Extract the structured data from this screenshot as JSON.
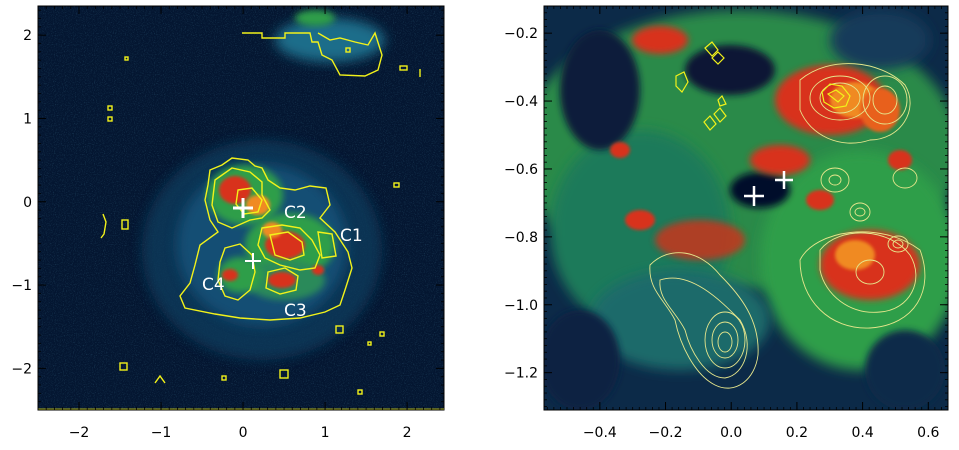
{
  "figure": {
    "colors": {
      "background": "#ffffff",
      "frame": "#000000",
      "contour_yellow": "#f2f21a",
      "contour_pale": "#e6e68c",
      "marker": "#ffffff",
      "label": "#ffffff",
      "map_dark": "#041631",
      "map_green": "#2f9e4a",
      "map_red": "#d8321c",
      "map_orange": "#f08a20"
    }
  },
  "chart_data": [
    {
      "type": "heatmap",
      "panel": "left",
      "title": "",
      "xlabel": "",
      "ylabel": "",
      "xlim": [
        -2.5,
        2.45
      ],
      "ylim": [
        -2.5,
        2.35
      ],
      "xticks": [
        -2,
        -1,
        0,
        1,
        2
      ],
      "yticks": [
        -2,
        -1,
        0,
        1,
        2
      ],
      "xtick_labels": [
        "−2",
        "−1",
        "0",
        "1",
        "2"
      ],
      "ytick_labels": [
        "−2",
        "−1",
        "0",
        "1",
        "2"
      ],
      "markers": [
        {
          "name": "cross-1",
          "x": 0.0,
          "y": 0.0
        },
        {
          "name": "cross-2",
          "x": 0.1,
          "y": -0.65
        }
      ],
      "annotations": [
        {
          "text": "C2",
          "x": 0.7,
          "y": 0.0
        },
        {
          "text": "C1",
          "x": 1.4,
          "y": -0.3
        },
        {
          "text": "C4",
          "x": -0.3,
          "y": -0.9
        },
        {
          "text": "C3",
          "x": 0.7,
          "y": -1.2
        }
      ]
    },
    {
      "type": "heatmap",
      "panel": "right",
      "title": "",
      "xlabel": "",
      "ylabel": "",
      "xlim": [
        -0.57,
        0.66
      ],
      "ylim": [
        -1.31,
        -0.12
      ],
      "xticks": [
        -0.4,
        -0.2,
        0.0,
        0.2,
        0.4,
        0.6
      ],
      "yticks": [
        -1.2,
        -1.0,
        -0.8,
        -0.6,
        -0.4,
        -0.2
      ],
      "xtick_labels": [
        "−0.4",
        "−0.2",
        "0.0",
        "0.2",
        "0.4",
        "0.6"
      ],
      "ytick_labels": [
        "−1.2",
        "−1.0",
        "−0.8",
        "−0.6",
        "−0.4",
        "−0.2"
      ],
      "markers": [
        {
          "name": "cross-1",
          "x": 0.05,
          "y": -0.7
        },
        {
          "name": "cross-2",
          "x": 0.15,
          "y": -0.66
        }
      ]
    }
  ]
}
